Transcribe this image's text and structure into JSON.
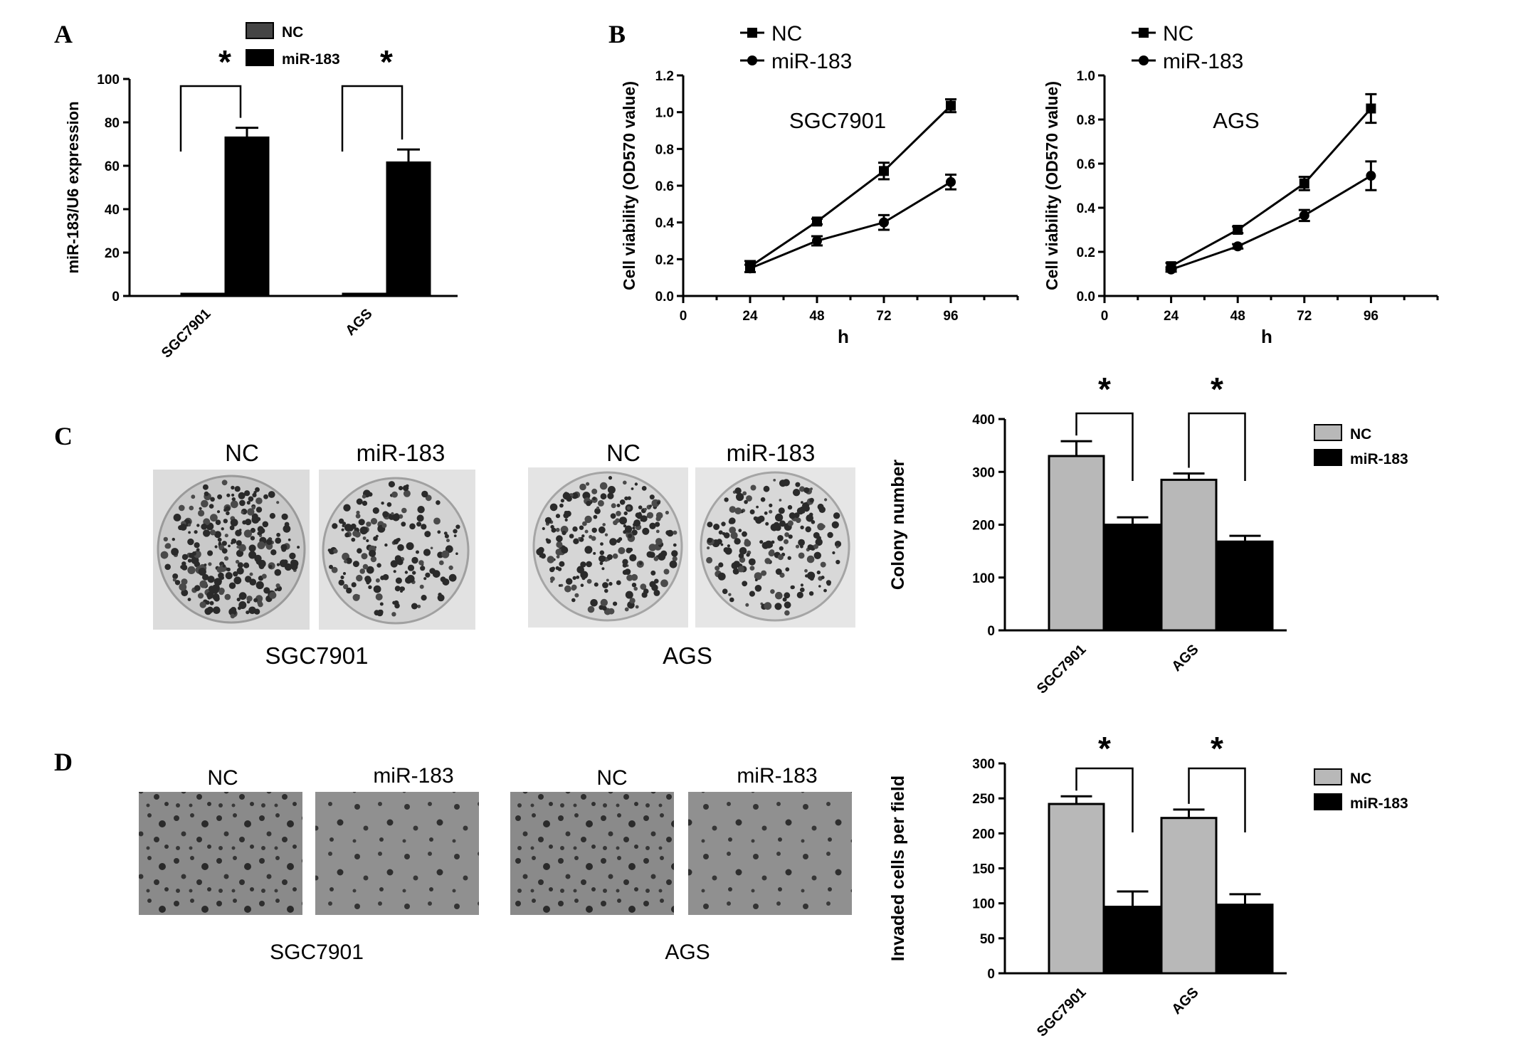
{
  "panel_letters": {
    "a": "A",
    "b": "B",
    "c": "C",
    "d": "D"
  },
  "colors": {
    "nc_bar": "#b8b8b8",
    "nc_bar_a": "#454545",
    "mir_bar": "#000000",
    "axis": "#000000"
  },
  "chart_data": [
    {
      "id": "A",
      "type": "bar",
      "categories": [
        "SGC7901",
        "AGS"
      ],
      "series": [
        {
          "name": "NC",
          "values": [
            1,
            1
          ],
          "errors": [
            0,
            0
          ]
        },
        {
          "name": "miR-183",
          "values": [
            73,
            61.5
          ],
          "errors": [
            4.5,
            6
          ]
        }
      ],
      "ylabel": "miR-183/U6 expression",
      "ylim": [
        0,
        100
      ],
      "yticks": [
        0,
        20,
        40,
        60,
        80,
        100
      ],
      "ytick_labels": [
        "0",
        "20",
        "40",
        "60",
        "80",
        "100"
      ],
      "significance": [
        "*",
        "*"
      ],
      "legend_position": "top"
    },
    {
      "id": "B1",
      "type": "line",
      "x": [
        24,
        48,
        72,
        96
      ],
      "series": [
        {
          "name": "NC",
          "marker": "square",
          "values": [
            0.16,
            0.405,
            0.68,
            1.035
          ],
          "errors": [
            0.03,
            0.015,
            0.045,
            0.035
          ]
        },
        {
          "name": "miR-183",
          "marker": "circle",
          "values": [
            0.15,
            0.3,
            0.4,
            0.62
          ],
          "errors": [
            0.02,
            0.025,
            0.04,
            0.04
          ]
        }
      ],
      "annotation": "SGC7901",
      "xlabel": "h",
      "ylabel": "Cell viability (OD570 value)",
      "xlim": [
        0,
        120
      ],
      "xticks": [
        0,
        24,
        48,
        72,
        96
      ],
      "xtick_labels": [
        "0",
        "24",
        "48",
        "72",
        "96"
      ],
      "ylim": [
        0,
        1.2
      ],
      "yticks": [
        0,
        0.2,
        0.4,
        0.6,
        0.8,
        1.0,
        1.2
      ],
      "ytick_labels": [
        "0.0",
        "0.2",
        "0.4",
        "0.6",
        "0.8",
        "1.0",
        "1.2"
      ],
      "legend_position": "top-left"
    },
    {
      "id": "B2",
      "type": "line",
      "x": [
        24,
        48,
        72,
        96
      ],
      "series": [
        {
          "name": "NC",
          "marker": "square",
          "values": [
            0.135,
            0.3,
            0.51,
            0.85
          ],
          "errors": [
            0.015,
            0.015,
            0.03,
            0.065
          ]
        },
        {
          "name": "miR-183",
          "marker": "circle",
          "values": [
            0.12,
            0.225,
            0.365,
            0.545
          ],
          "errors": [
            0.01,
            0.01,
            0.025,
            0.065
          ]
        }
      ],
      "annotation": "AGS",
      "xlabel": "h",
      "ylabel": "Cell viability (OD570 value)",
      "xlim": [
        0,
        120
      ],
      "xticks": [
        0,
        24,
        48,
        72,
        96
      ],
      "xtick_labels": [
        "0",
        "24",
        "48",
        "72",
        "96"
      ],
      "ylim": [
        0,
        1.0
      ],
      "yticks": [
        0,
        0.2,
        0.4,
        0.6,
        0.8,
        1.0
      ],
      "ytick_labels": [
        "0.0",
        "0.2",
        "0.4",
        "0.6",
        "0.8",
        "1.0"
      ],
      "legend_position": "top-left"
    },
    {
      "id": "C",
      "type": "bar",
      "categories": [
        "SGC7901",
        "AGS"
      ],
      "series": [
        {
          "name": "NC",
          "values": [
            330,
            285
          ],
          "errors": [
            28,
            12
          ]
        },
        {
          "name": "miR-183",
          "values": [
            200,
            168
          ],
          "errors": [
            14,
            11
          ]
        }
      ],
      "ylabel": "Colony number",
      "ylim": [
        0,
        400
      ],
      "yticks": [
        0,
        100,
        200,
        300,
        400
      ],
      "ytick_labels": [
        "0",
        "100",
        "200",
        "300",
        "400"
      ],
      "significance": [
        "*",
        "*"
      ],
      "legend_position": "right"
    },
    {
      "id": "D",
      "type": "bar",
      "categories": [
        "SGC7901",
        "AGS"
      ],
      "series": [
        {
          "name": "NC",
          "values": [
            242,
            222
          ],
          "errors": [
            11,
            12
          ]
        },
        {
          "name": "miR-183",
          "values": [
            95,
            98
          ],
          "errors": [
            22,
            15
          ]
        }
      ],
      "ylabel": "Invaded cells per field",
      "ylim": [
        0,
        300
      ],
      "yticks": [
        0,
        50,
        100,
        150,
        200,
        250,
        300
      ],
      "ytick_labels": [
        "0",
        "50",
        "100",
        "150",
        "200",
        "250",
        "300"
      ],
      "significance": [
        "*",
        "*"
      ],
      "legend_position": "right"
    }
  ],
  "photos": {
    "C": {
      "groups": [
        "SGC7901",
        "AGS"
      ],
      "labels": [
        "NC",
        "miR-183",
        "NC",
        "miR-183"
      ]
    },
    "D": {
      "groups": [
        "SGC7901",
        "AGS"
      ],
      "labels": [
        "NC",
        "miR-183",
        "NC",
        "miR-183"
      ]
    }
  }
}
